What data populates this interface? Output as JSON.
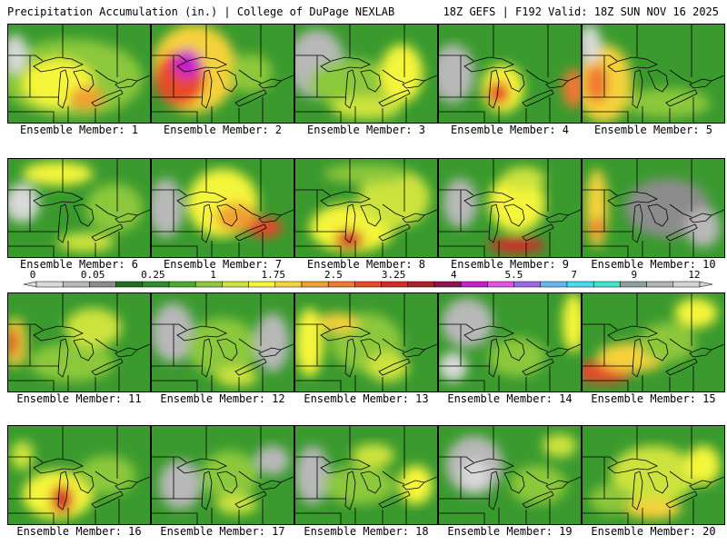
{
  "header": {
    "left_title": "Precipitation Accumulation (in.) | College of DuPage NEXLAB",
    "right_title": "18Z GEFS | F192 Valid: 18Z SUN NOV 16 2025"
  },
  "colors": {
    "land_base": "#3a9a2e",
    "outline": "#000000",
    "scale": [
      "#d9d9d9",
      "#b8b8b8",
      "#8c8c8c",
      "#1f6f1f",
      "#2e8b2e",
      "#4caa2e",
      "#8cc83a",
      "#cde33c",
      "#f5f53a",
      "#f5d23a",
      "#f0a030",
      "#f07830",
      "#e84a2a",
      "#d62a2a",
      "#b01e2a",
      "#8a1450",
      "#c81ec8",
      "#e650e6",
      "#9a6ae6",
      "#6ab4f0",
      "#46dcf0",
      "#3ae6c8",
      "#8ca0a0",
      "#b4b4b4",
      "#d2d2d2"
    ]
  },
  "colorbar": {
    "labels": [
      "0",
      "0.05",
      "0.25",
      "1",
      "1.75",
      "2.5",
      "3.25",
      "4",
      "5.5",
      "7",
      "9",
      "12"
    ]
  },
  "members": [
    {
      "label": "Ensemble Member: 1",
      "blobs": [
        [
          0.45,
          0.55,
          0.5,
          0.4,
          "#8cc83a"
        ],
        [
          0.35,
          0.6,
          0.25,
          0.25,
          "#f5f53a"
        ],
        [
          0.55,
          0.75,
          0.12,
          0.12,
          "#f0a030"
        ],
        [
          0.05,
          0.3,
          0.08,
          0.2,
          "#d9d9d9"
        ]
      ]
    },
    {
      "label": "Ensemble Member: 2",
      "blobs": [
        [
          0.3,
          0.45,
          0.3,
          0.45,
          "#f5d23a"
        ],
        [
          0.2,
          0.55,
          0.18,
          0.28,
          "#e84a2a"
        ],
        [
          0.25,
          0.4,
          0.1,
          0.15,
          "#c81ec8"
        ],
        [
          0.7,
          0.5,
          0.15,
          0.2,
          "#8cc83a"
        ]
      ]
    },
    {
      "label": "Ensemble Member: 3",
      "blobs": [
        [
          0.15,
          0.4,
          0.2,
          0.35,
          "#b8b8b8"
        ],
        [
          0.4,
          0.6,
          0.3,
          0.25,
          "#8cc83a"
        ],
        [
          0.75,
          0.5,
          0.15,
          0.3,
          "#f5f53a"
        ],
        [
          0.5,
          0.85,
          0.25,
          0.12,
          "#cde33c"
        ]
      ]
    },
    {
      "label": "Ensemble Member: 4",
      "blobs": [
        [
          0.1,
          0.5,
          0.15,
          0.3,
          "#b8b8b8"
        ],
        [
          0.45,
          0.65,
          0.15,
          0.25,
          "#f5f53a"
        ],
        [
          0.42,
          0.7,
          0.08,
          0.12,
          "#e84a2a"
        ],
        [
          0.95,
          0.65,
          0.08,
          0.2,
          "#f07830"
        ]
      ]
    },
    {
      "label": "Ensemble Member: 5",
      "blobs": [
        [
          0.15,
          0.6,
          0.2,
          0.4,
          "#f5d23a"
        ],
        [
          0.1,
          0.6,
          0.08,
          0.2,
          "#f07830"
        ],
        [
          0.05,
          0.2,
          0.08,
          0.2,
          "#d9d9d9"
        ],
        [
          0.6,
          0.8,
          0.3,
          0.15,
          "#8cc83a"
        ]
      ]
    },
    {
      "label": "Ensemble Member: 6",
      "blobs": [
        [
          0.1,
          0.45,
          0.12,
          0.2,
          "#d9d9d9"
        ],
        [
          0.35,
          0.15,
          0.25,
          0.12,
          "#f5f53a"
        ],
        [
          0.75,
          0.5,
          0.2,
          0.25,
          "#8cc83a"
        ],
        [
          0.55,
          0.85,
          0.2,
          0.1,
          "#cde33c"
        ]
      ]
    },
    {
      "label": "Ensemble Member: 7",
      "blobs": [
        [
          0.1,
          0.5,
          0.12,
          0.3,
          "#b8b8b8"
        ],
        [
          0.5,
          0.45,
          0.25,
          0.35,
          "#f5f53a"
        ],
        [
          0.6,
          0.6,
          0.15,
          0.15,
          "#f0a030"
        ],
        [
          0.8,
          0.7,
          0.12,
          0.1,
          "#e84a2a"
        ]
      ]
    },
    {
      "label": "Ensemble Member: 8",
      "blobs": [
        [
          0.4,
          0.7,
          0.3,
          0.25,
          "#f5f53a"
        ],
        [
          0.38,
          0.82,
          0.1,
          0.1,
          "#d62a2a"
        ],
        [
          0.7,
          0.4,
          0.25,
          0.3,
          "#cde33c"
        ],
        [
          0.5,
          0.15,
          0.3,
          0.1,
          "#8cc83a"
        ]
      ]
    },
    {
      "label": "Ensemble Member: 9",
      "blobs": [
        [
          0.15,
          0.45,
          0.12,
          0.25,
          "#b8b8b8"
        ],
        [
          0.55,
          0.45,
          0.2,
          0.3,
          "#f5f53a"
        ],
        [
          0.55,
          0.88,
          0.2,
          0.08,
          "#d62a2a"
        ],
        [
          0.6,
          0.2,
          0.15,
          0.12,
          "#cde33c"
        ]
      ]
    },
    {
      "label": "Ensemble Member: 10",
      "blobs": [
        [
          0.1,
          0.5,
          0.08,
          0.4,
          "#f5d23a"
        ],
        [
          0.1,
          0.7,
          0.05,
          0.1,
          "#f07830"
        ],
        [
          0.6,
          0.5,
          0.3,
          0.3,
          "#8c8c8c"
        ],
        [
          0.85,
          0.7,
          0.12,
          0.2,
          "#b8b8b8"
        ]
      ]
    },
    {
      "label": "Ensemble Member: 11",
      "blobs": [
        [
          0.05,
          0.5,
          0.08,
          0.25,
          "#f5d23a"
        ],
        [
          0.03,
          0.5,
          0.04,
          0.15,
          "#d62a2a"
        ],
        [
          0.45,
          0.7,
          0.3,
          0.2,
          "#8cc83a"
        ],
        [
          0.6,
          0.35,
          0.2,
          0.2,
          "#cde33c"
        ]
      ]
    },
    {
      "label": "Ensemble Member: 12",
      "blobs": [
        [
          0.15,
          0.4,
          0.15,
          0.3,
          "#b8b8b8"
        ],
        [
          0.5,
          0.55,
          0.25,
          0.3,
          "#8cc83a"
        ],
        [
          0.85,
          0.5,
          0.12,
          0.3,
          "#b8b8b8"
        ],
        [
          0.6,
          0.85,
          0.15,
          0.1,
          "#cde33c"
        ]
      ]
    },
    {
      "label": "Ensemble Member: 13",
      "blobs": [
        [
          0.1,
          0.5,
          0.1,
          0.35,
          "#f5f53a"
        ],
        [
          0.5,
          0.5,
          0.25,
          0.3,
          "#8cc83a"
        ],
        [
          0.65,
          0.75,
          0.15,
          0.15,
          "#cde33c"
        ],
        [
          0.3,
          0.3,
          0.15,
          0.1,
          "#f5d23a"
        ]
      ]
    },
    {
      "label": "Ensemble Member: 14",
      "blobs": [
        [
          0.2,
          0.3,
          0.18,
          0.25,
          "#b8b8b8"
        ],
        [
          0.1,
          0.75,
          0.1,
          0.15,
          "#d9d9d9"
        ],
        [
          0.95,
          0.3,
          0.08,
          0.3,
          "#f5f53a"
        ],
        [
          0.55,
          0.65,
          0.2,
          0.2,
          "#8cc83a"
        ]
      ]
    },
    {
      "label": "Ensemble Member: 15",
      "blobs": [
        [
          0.15,
          0.8,
          0.2,
          0.12,
          "#e84a2a"
        ],
        [
          0.35,
          0.65,
          0.25,
          0.15,
          "#f5d23a"
        ],
        [
          0.8,
          0.2,
          0.15,
          0.15,
          "#f5f53a"
        ],
        [
          0.6,
          0.5,
          0.2,
          0.2,
          "#8cc83a"
        ]
      ]
    },
    {
      "label": "Ensemble Member: 16",
      "blobs": [
        [
          0.35,
          0.7,
          0.25,
          0.25,
          "#f5f53a"
        ],
        [
          0.38,
          0.75,
          0.08,
          0.15,
          "#d62a2a"
        ],
        [
          0.1,
          0.3,
          0.08,
          0.15,
          "#cde33c"
        ],
        [
          0.7,
          0.5,
          0.2,
          0.2,
          "#8cc83a"
        ]
      ]
    },
    {
      "label": "Ensemble Member: 17",
      "blobs": [
        [
          0.2,
          0.6,
          0.15,
          0.25,
          "#b8b8b8"
        ],
        [
          0.55,
          0.5,
          0.2,
          0.25,
          "#8cc83a"
        ],
        [
          0.6,
          0.8,
          0.15,
          0.1,
          "#cde33c"
        ],
        [
          0.85,
          0.35,
          0.12,
          0.15,
          "#b8b8b8"
        ]
      ]
    },
    {
      "label": "Ensemble Member: 18",
      "blobs": [
        [
          0.12,
          0.5,
          0.12,
          0.3,
          "#b8b8b8"
        ],
        [
          0.45,
          0.6,
          0.25,
          0.2,
          "#8cc83a"
        ],
        [
          0.55,
          0.3,
          0.15,
          0.12,
          "#cde33c"
        ],
        [
          0.85,
          0.6,
          0.12,
          0.2,
          "#f5f53a"
        ]
      ]
    },
    {
      "label": "Ensemble Member: 19",
      "blobs": [
        [
          0.25,
          0.4,
          0.2,
          0.3,
          "#b8b8b8"
        ],
        [
          0.25,
          0.5,
          0.1,
          0.15,
          "#d9d9d9"
        ],
        [
          0.7,
          0.6,
          0.2,
          0.2,
          "#8cc83a"
        ],
        [
          0.85,
          0.2,
          0.12,
          0.12,
          "#cde33c"
        ]
      ]
    },
    {
      "label": "Ensemble Member: 20",
      "blobs": [
        [
          0.5,
          0.5,
          0.3,
          0.3,
          "#cde33c"
        ],
        [
          0.85,
          0.4,
          0.12,
          0.2,
          "#f5f53a"
        ],
        [
          0.2,
          0.75,
          0.15,
          0.15,
          "#8cc83a"
        ],
        [
          0.5,
          0.85,
          0.2,
          0.1,
          "#f5d23a"
        ]
      ]
    }
  ]
}
